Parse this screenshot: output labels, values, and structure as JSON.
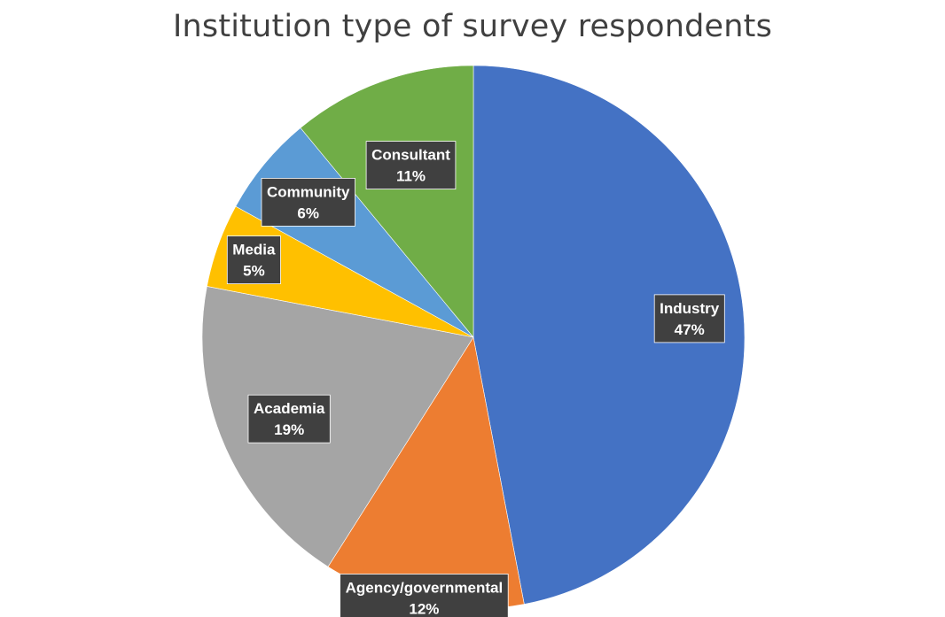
{
  "chart_data": {
    "type": "pie",
    "title": "Institution type of survey respondents",
    "categories": [
      "Industry",
      "Agency/governmental",
      "Academia",
      "Media",
      "Community",
      "Consultant"
    ],
    "values": [
      47,
      12,
      19,
      5,
      6,
      11
    ],
    "value_labels": [
      "47%",
      "12%",
      "19%",
      "5%",
      "6%",
      "11%"
    ],
    "colors": [
      "#4472C4",
      "#ED7D31",
      "#A5A5A5",
      "#FFC000",
      "#5B9BD5",
      "#70AD47"
    ],
    "start_angle": "12 o'clock",
    "direction": "clockwise",
    "data_labels": "category and percent",
    "legend": "none"
  }
}
